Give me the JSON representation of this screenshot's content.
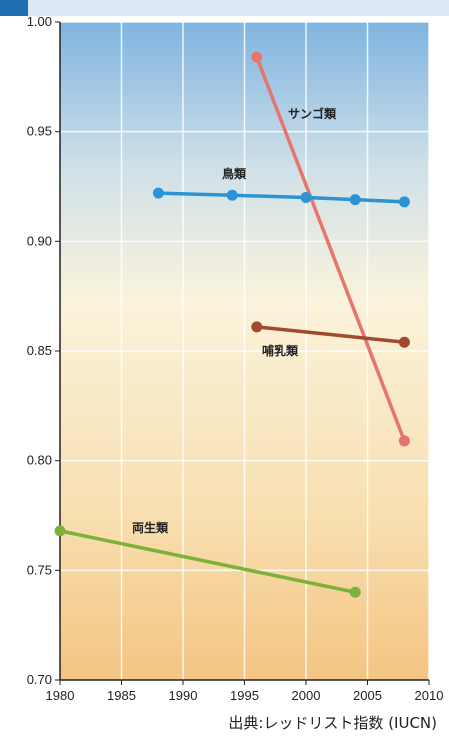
{
  "chart_data": {
    "type": "line",
    "x_ticks": [
      1980,
      1985,
      1990,
      1995,
      2000,
      2005,
      2010
    ],
    "y_ticks": [
      "0.70",
      "0.75",
      "0.80",
      "0.85",
      "0.90",
      "0.95",
      "1.00"
    ],
    "xlim": [
      1980,
      2010
    ],
    "ylim": [
      0.7,
      1.0
    ],
    "grid": true,
    "series": [
      {
        "name": "サンゴ類",
        "color": "#e8756b",
        "points": [
          [
            1996,
            0.984
          ],
          [
            2008,
            0.809
          ]
        ]
      },
      {
        "name": "鳥類",
        "color": "#2b93d6",
        "points": [
          [
            1988,
            0.922
          ],
          [
            1994,
            0.921
          ],
          [
            2000,
            0.92
          ],
          [
            2004,
            0.919
          ],
          [
            2008,
            0.918
          ]
        ]
      },
      {
        "name": "哺乳類",
        "color": "#a0492d",
        "points": [
          [
            1996,
            0.861
          ],
          [
            2008,
            0.854
          ]
        ]
      },
      {
        "name": "両生類",
        "color": "#7cb23a",
        "points": [
          [
            1980,
            0.768
          ],
          [
            2004,
            0.74
          ]
        ]
      }
    ]
  },
  "source_note": "出典:レッドリスト指数 (IUCN)"
}
